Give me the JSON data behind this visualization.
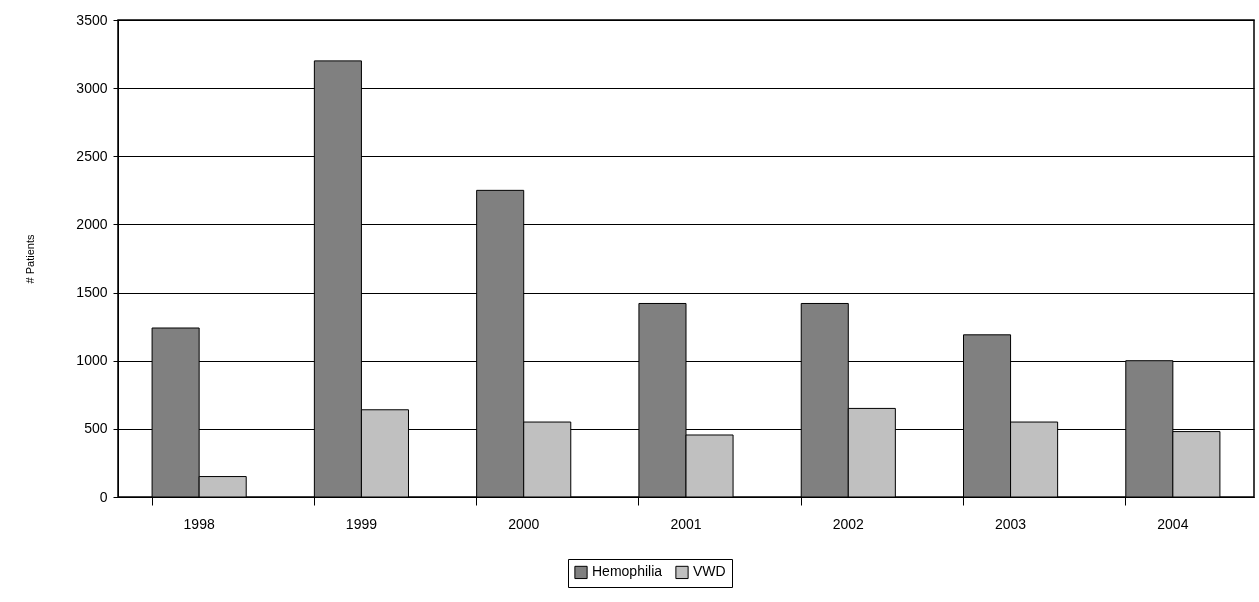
{
  "chart_data": {
    "type": "bar",
    "ylabel": "# Patients",
    "categories": [
      "1998",
      "1999",
      "2000",
      "2001",
      "2002",
      "2003",
      "2004"
    ],
    "series": [
      {
        "name": "Hemophilia",
        "color": "#808080",
        "values": [
          1240,
          3200,
          2250,
          1420,
          1420,
          1190,
          1000
        ]
      },
      {
        "name": "VWD",
        "color": "#c0c0c0",
        "values": [
          150,
          640,
          550,
          455,
          650,
          550,
          480
        ]
      }
    ],
    "ylim": [
      0,
      3500
    ],
    "yticks": [
      0,
      500,
      1000,
      1500,
      2000,
      2500,
      3000,
      3500
    ],
    "grid": "y",
    "legend": "bottom"
  }
}
